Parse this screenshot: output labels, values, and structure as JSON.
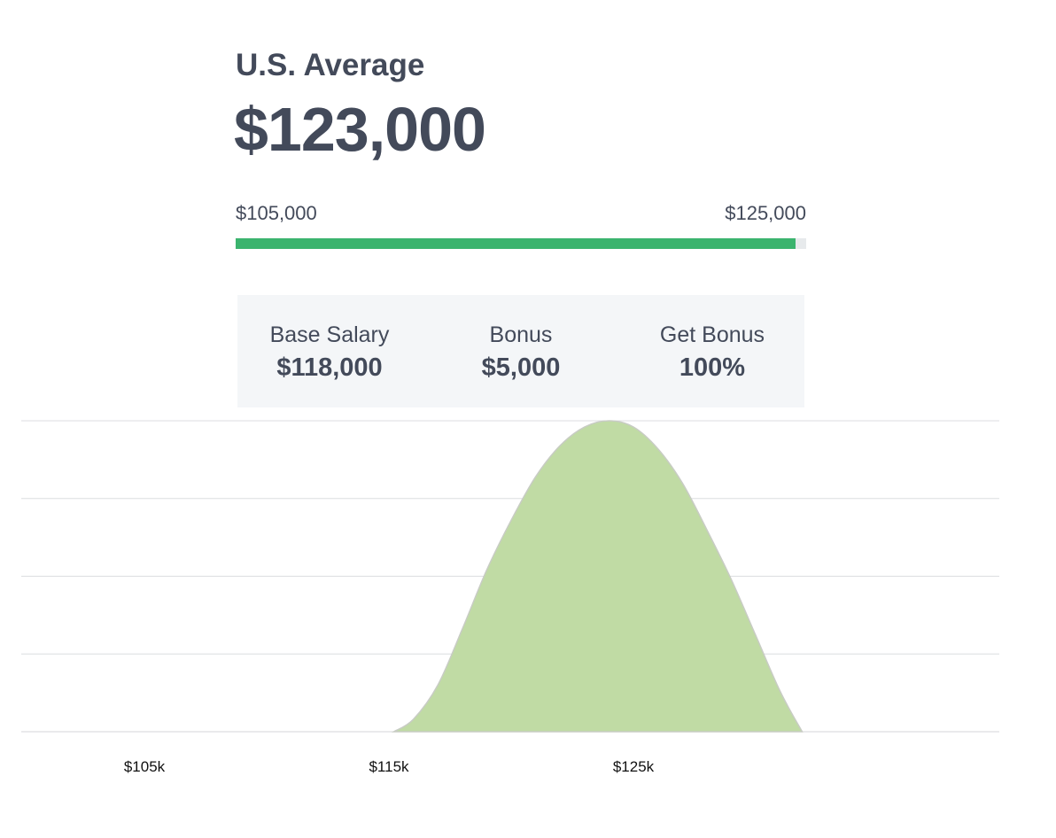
{
  "header": {
    "title": "U.S. Average",
    "amount": "$123,000"
  },
  "range": {
    "low_label": "$105,000",
    "high_label": "$125,000",
    "fill_fraction": 0.982,
    "fill_color": "#3bb46e"
  },
  "summary": {
    "items": [
      {
        "label": "Base Salary",
        "value": "$118,000"
      },
      {
        "label": "Bonus",
        "value": "$5,000"
      },
      {
        "label": "Get Bonus",
        "value": "100%"
      }
    ]
  },
  "chart_data": {
    "type": "area",
    "xlabel": "",
    "ylabel": "",
    "x_ticks": [
      {
        "value": 105000,
        "label": "$105k"
      },
      {
        "value": 115000,
        "label": "$115k"
      },
      {
        "value": 125000,
        "label": "$125k"
      }
    ],
    "xlim": [
      100000,
      140000
    ],
    "ylim": [
      0,
      1
    ],
    "grid": true,
    "series": [
      {
        "color": "#c0dba4",
        "points": [
          [
            115200,
            0
          ],
          [
            116000,
            0.04
          ],
          [
            117000,
            0.15
          ],
          [
            118000,
            0.33
          ],
          [
            119000,
            0.52
          ],
          [
            120000,
            0.68
          ],
          [
            121000,
            0.82
          ],
          [
            122000,
            0.92
          ],
          [
            123000,
            0.98
          ],
          [
            124000,
            1.0
          ],
          [
            125000,
            0.98
          ],
          [
            126000,
            0.91
          ],
          [
            127000,
            0.8
          ],
          [
            128000,
            0.65
          ],
          [
            129000,
            0.49
          ],
          [
            130000,
            0.31
          ],
          [
            131000,
            0.13
          ],
          [
            131900,
            0
          ]
        ]
      }
    ]
  }
}
